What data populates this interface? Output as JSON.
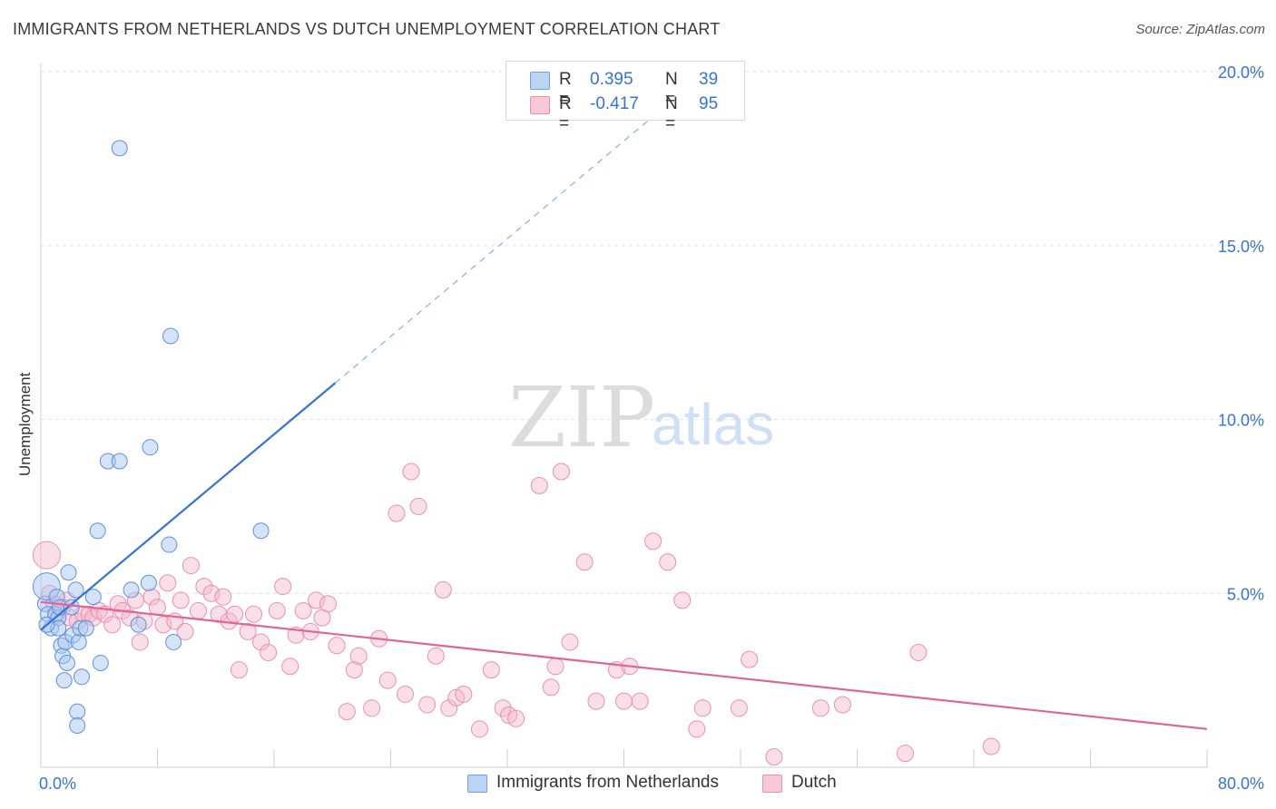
{
  "title": "IMMIGRANTS FROM NETHERLANDS VS DUTCH UNEMPLOYMENT CORRELATION CHART",
  "source": "Source: ZipAtlas.com",
  "watermark": {
    "part1": "ZIP",
    "part2": "atlas"
  },
  "colors": {
    "blue": "#3574d1",
    "blue_fill": "#aac8f0",
    "pink": "#e06597",
    "pink_fill": "#f5b7cb",
    "grid": "#e0e0e0",
    "axis_text": "#3574d1"
  },
  "legend": {
    "rows": [
      {
        "r_label": "R =",
        "r_value": "0.395",
        "n_label": "N =",
        "n_value": "39"
      },
      {
        "r_label": "R =",
        "r_value": "-0.417",
        "n_label": "N =",
        "n_value": "95"
      }
    ]
  },
  "bottom_legend": {
    "series1": "Immigrants from Netherlands",
    "series2": "Dutch"
  },
  "chart_data": {
    "type": "scatter",
    "xlabel": "",
    "ylabel": "Unemployment",
    "xlim": [
      0,
      80
    ],
    "ylim": [
      0,
      20.5
    ],
    "x_tick_labels": [
      "0.0%",
      "80.0%"
    ],
    "y_tick_labels": [
      "5.0%",
      "10.0%",
      "15.0%",
      "20.0%"
    ],
    "y_ticks": [
      5,
      10,
      15,
      20
    ],
    "grid": true,
    "series": [
      {
        "name": "Immigrants from Netherlands",
        "trend": {
          "x0": 0,
          "y0": 3.95,
          "x1": 20.2,
          "y1": 11.05,
          "extend_to_x": 43,
          "dashed_extension": true
        },
        "points": [
          [
            0.3,
            4.7
          ],
          [
            0.4,
            5.2
          ],
          [
            0.5,
            4.4
          ],
          [
            0.7,
            4.0
          ],
          [
            1.0,
            4.4
          ],
          [
            1.1,
            4.9
          ],
          [
            1.2,
            4.3
          ],
          [
            1.2,
            4.0
          ],
          [
            1.3,
            4.6
          ],
          [
            1.4,
            3.5
          ],
          [
            1.5,
            3.2
          ],
          [
            1.6,
            2.5
          ],
          [
            1.7,
            3.6
          ],
          [
            1.8,
            3.0
          ],
          [
            1.9,
            5.6
          ],
          [
            2.1,
            4.6
          ],
          [
            2.2,
            3.8
          ],
          [
            2.4,
            5.1
          ],
          [
            2.5,
            1.6
          ],
          [
            2.5,
            1.2
          ],
          [
            2.6,
            3.6
          ],
          [
            2.7,
            4.0
          ],
          [
            2.8,
            2.6
          ],
          [
            3.1,
            4.0
          ],
          [
            3.6,
            4.9
          ],
          [
            4.1,
            3.0
          ],
          [
            3.9,
            6.8
          ],
          [
            4.6,
            8.8
          ],
          [
            5.4,
            8.8
          ],
          [
            5.4,
            17.8
          ],
          [
            6.2,
            5.1
          ],
          [
            6.7,
            4.1
          ],
          [
            7.4,
            5.3
          ],
          [
            7.5,
            9.2
          ],
          [
            8.8,
            6.4
          ],
          [
            8.9,
            12.4
          ],
          [
            9.1,
            3.6
          ],
          [
            15.1,
            6.8
          ],
          [
            0.4,
            4.1
          ]
        ]
      },
      {
        "name": "Dutch",
        "trend": {
          "x0": 0,
          "y0": 4.75,
          "x1": 80,
          "y1": 1.1
        },
        "points": [
          [
            0.4,
            6.1
          ],
          [
            0.6,
            5.0
          ],
          [
            0.9,
            4.7
          ],
          [
            1.1,
            4.4
          ],
          [
            1.5,
            4.6
          ],
          [
            1.8,
            4.8
          ],
          [
            2.0,
            4.3
          ],
          [
            2.5,
            4.2
          ],
          [
            2.9,
            4.4
          ],
          [
            3.3,
            4.4
          ],
          [
            3.6,
            4.3
          ],
          [
            4.0,
            4.5
          ],
          [
            4.4,
            4.4
          ],
          [
            4.9,
            4.1
          ],
          [
            5.3,
            4.7
          ],
          [
            5.6,
            4.5
          ],
          [
            6.1,
            4.3
          ],
          [
            6.5,
            4.8
          ],
          [
            6.8,
            3.6
          ],
          [
            7.1,
            4.2
          ],
          [
            7.6,
            4.9
          ],
          [
            8.0,
            4.6
          ],
          [
            8.4,
            4.1
          ],
          [
            8.7,
            5.3
          ],
          [
            9.2,
            4.2
          ],
          [
            9.6,
            4.8
          ],
          [
            9.9,
            3.9
          ],
          [
            10.3,
            5.8
          ],
          [
            10.8,
            4.5
          ],
          [
            11.2,
            5.2
          ],
          [
            11.7,
            5.0
          ],
          [
            12.2,
            4.4
          ],
          [
            12.5,
            4.9
          ],
          [
            12.9,
            4.2
          ],
          [
            13.3,
            4.4
          ],
          [
            13.6,
            2.8
          ],
          [
            14.2,
            3.9
          ],
          [
            14.6,
            4.4
          ],
          [
            15.1,
            3.6
          ],
          [
            15.6,
            3.3
          ],
          [
            16.2,
            4.5
          ],
          [
            16.6,
            5.2
          ],
          [
            17.1,
            2.9
          ],
          [
            17.5,
            3.8
          ],
          [
            18.0,
            4.5
          ],
          [
            18.5,
            3.9
          ],
          [
            18.9,
            4.8
          ],
          [
            19.3,
            4.3
          ],
          [
            19.7,
            4.7
          ],
          [
            20.3,
            3.5
          ],
          [
            21.0,
            1.6
          ],
          [
            21.5,
            2.8
          ],
          [
            21.8,
            3.2
          ],
          [
            22.7,
            1.7
          ],
          [
            23.2,
            3.7
          ],
          [
            23.8,
            2.5
          ],
          [
            24.4,
            7.3
          ],
          [
            25.0,
            2.1
          ],
          [
            25.4,
            8.5
          ],
          [
            25.9,
            7.5
          ],
          [
            26.5,
            1.8
          ],
          [
            27.1,
            3.2
          ],
          [
            27.6,
            5.1
          ],
          [
            28.0,
            1.7
          ],
          [
            28.5,
            2.0
          ],
          [
            29.0,
            2.1
          ],
          [
            30.1,
            1.1
          ],
          [
            30.9,
            2.8
          ],
          [
            31.7,
            1.7
          ],
          [
            32.1,
            1.5
          ],
          [
            32.6,
            1.4
          ],
          [
            34.2,
            8.1
          ],
          [
            35.0,
            2.3
          ],
          [
            35.3,
            2.9
          ],
          [
            35.7,
            8.5
          ],
          [
            36.3,
            3.6
          ],
          [
            37.3,
            5.9
          ],
          [
            38.1,
            1.9
          ],
          [
            39.5,
            2.8
          ],
          [
            40.0,
            1.9
          ],
          [
            40.4,
            2.9
          ],
          [
            41.1,
            1.9
          ],
          [
            42.0,
            6.5
          ],
          [
            43.0,
            5.9
          ],
          [
            44.0,
            4.8
          ],
          [
            45.0,
            1.1
          ],
          [
            45.4,
            1.7
          ],
          [
            47.9,
            1.7
          ],
          [
            48.6,
            3.1
          ],
          [
            50.3,
            0.3
          ],
          [
            53.5,
            1.7
          ],
          [
            55.0,
            1.8
          ],
          [
            59.3,
            0.4
          ],
          [
            60.2,
            3.3
          ],
          [
            65.2,
            0.6
          ]
        ]
      }
    ]
  }
}
